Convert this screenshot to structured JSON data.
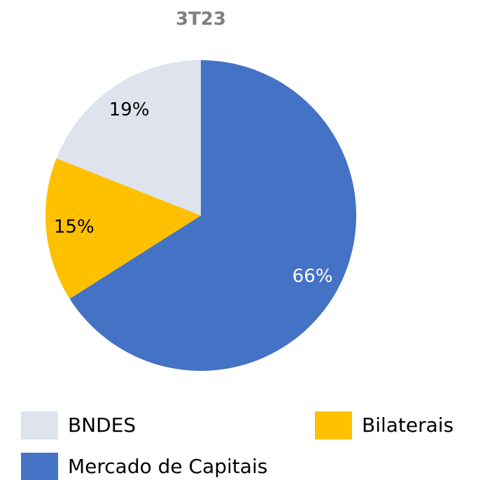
{
  "chart_data": {
    "type": "pie",
    "title": "3T23",
    "categories": [
      "BNDES",
      "Bilaterais",
      "Mercado de Capitais"
    ],
    "values": [
      19,
      15,
      66
    ],
    "value_labels": [
      "19%",
      "15%",
      "66%"
    ],
    "colors": [
      "#dee3ee",
      "#ffc000",
      "#4472c4"
    ],
    "legend": "bottom"
  }
}
